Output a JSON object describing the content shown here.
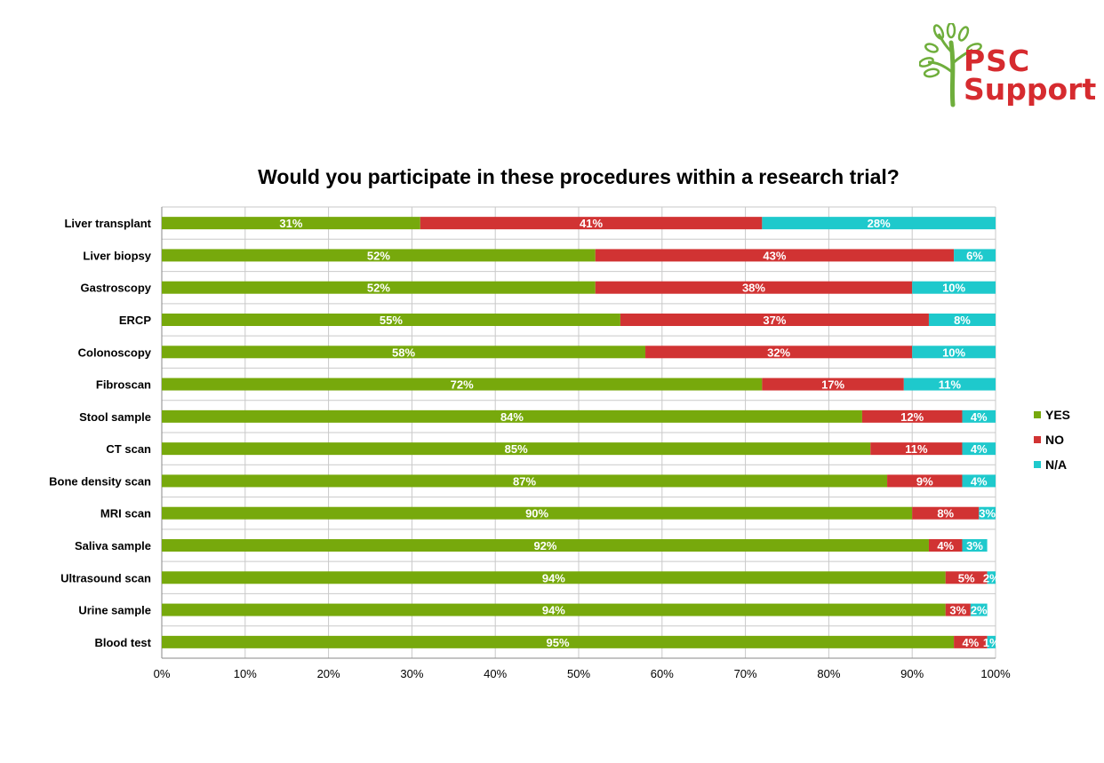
{
  "logo": {
    "line1": "PSC",
    "line2": "Support"
  },
  "colors": {
    "yes": "#77a90c",
    "no": "#d13333",
    "na": "#1ec9cc",
    "grid": "#c9c9c9",
    "brand_red": "#d62b2f",
    "brand_green": "#6fae3c"
  },
  "chart_data": {
    "type": "bar",
    "orientation": "horizontal",
    "stacked": true,
    "title": "Would you participate in these procedures within a research trial?",
    "categories": [
      "Liver transplant",
      "Liver biopsy",
      "Gastroscopy",
      "ERCP",
      "Colonoscopy",
      "Fibroscan",
      "Stool sample",
      "CT scan",
      "Bone density scan",
      "MRI scan",
      "Saliva sample",
      "Ultrasound scan",
      "Urine sample",
      "Blood test"
    ],
    "series": [
      {
        "name": "YES",
        "color": "#77a90c",
        "values": [
          31,
          52,
          52,
          55,
          58,
          72,
          84,
          85,
          87,
          90,
          92,
          94,
          94,
          95
        ],
        "labels": [
          "31%",
          "52%",
          "52%",
          "55%",
          "58%",
          "72%",
          "84%",
          "85%",
          "87%",
          "90%",
          "92%",
          "94%",
          "94%",
          "95%"
        ]
      },
      {
        "name": "NO",
        "color": "#d13333",
        "values": [
          41,
          43,
          38,
          37,
          32,
          17,
          12,
          11,
          9,
          8,
          4,
          5,
          3,
          4
        ],
        "labels": [
          "41%",
          "43%",
          "38%",
          "37%",
          "32%",
          "17%",
          "12%",
          "11%",
          "9%",
          "8%",
          "4%",
          "5%",
          "3%",
          "4%"
        ]
      },
      {
        "name": "N/A",
        "color": "#1ec9cc",
        "values": [
          28,
          6,
          10,
          8,
          10,
          11,
          4,
          4,
          4,
          3,
          3,
          2,
          2,
          1
        ],
        "labels": [
          "28%",
          "6%",
          "10%",
          "8%",
          "10%",
          "11%",
          "4%",
          "4%",
          "4%",
          "3%",
          "3%",
          "2%",
          "2%",
          "1%"
        ]
      }
    ],
    "xlim": [
      0,
      100
    ],
    "xticks": [
      "0%",
      "10%",
      "20%",
      "30%",
      "40%",
      "50%",
      "60%",
      "70%",
      "80%",
      "90%",
      "100%"
    ],
    "xlabel": "",
    "ylabel": "",
    "grid": true,
    "legend": "right"
  }
}
